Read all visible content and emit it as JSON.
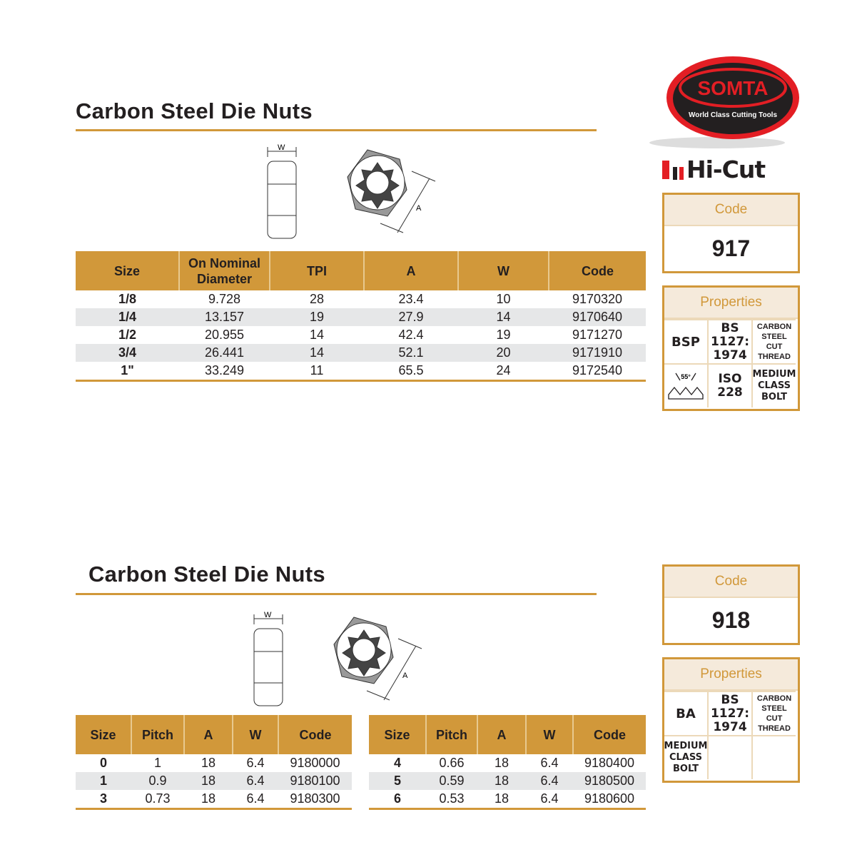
{
  "logo": {
    "brand": "SOMTA",
    "tagline": "World Class Cutting Tools",
    "sub_brand": "Hi-Cut"
  },
  "colors": {
    "accent": "#d1983a",
    "row_alt": "#e6e7e8",
    "logo_red": "#e31e24"
  },
  "section1": {
    "title": "Carbon Steel Die Nuts",
    "diagram": {
      "w_label": "W",
      "a_label": "A"
    },
    "columns": [
      "Size",
      "On Nominal Diameter",
      "TPI",
      "A",
      "W",
      "Code"
    ],
    "rows": [
      [
        "1/8",
        "9.728",
        "28",
        "23.4",
        "10",
        "9170320"
      ],
      [
        "1/4",
        "13.157",
        "19",
        "27.9",
        "14",
        "9170640"
      ],
      [
        "1/2",
        "20.955",
        "14",
        "42.4",
        "19",
        "9171270"
      ],
      [
        "3/4",
        "26.441",
        "14",
        "52.1",
        "20",
        "9171910"
      ],
      [
        "1\"",
        "33.249",
        "11",
        "65.5",
        "24",
        "9172540"
      ]
    ],
    "code_box": {
      "label": "Code",
      "value": "917"
    },
    "properties": {
      "label": "Properties",
      "items": [
        "BSP",
        "BS 1127: 1974",
        "CARBON STEEL CUT THREAD",
        "55°",
        "ISO 228",
        "MEDIUM CLASS BOLT"
      ]
    }
  },
  "section2": {
    "title": "Carbon Steel Die Nuts",
    "diagram": {
      "w_label": "W",
      "a_label": "A"
    },
    "columns": [
      "Size",
      "Pitch",
      "A",
      "W",
      "Code"
    ],
    "left_rows": [
      [
        "0",
        "1",
        "18",
        "6.4",
        "9180000"
      ],
      [
        "1",
        "0.9",
        "18",
        "6.4",
        "9180100"
      ],
      [
        "3",
        "0.73",
        "18",
        "6.4",
        "9180300"
      ]
    ],
    "right_rows": [
      [
        "4",
        "0.66",
        "18",
        "6.4",
        "9180400"
      ],
      [
        "5",
        "0.59",
        "18",
        "6.4",
        "9180500"
      ],
      [
        "6",
        "0.53",
        "18",
        "6.4",
        "9180600"
      ]
    ],
    "code_box": {
      "label": "Code",
      "value": "918"
    },
    "properties": {
      "label": "Properties",
      "items": [
        "BA",
        "BS 1127: 1974",
        "CARBON STEEL CUT THREAD",
        "MEDIUM CLASS BOLT"
      ]
    }
  }
}
